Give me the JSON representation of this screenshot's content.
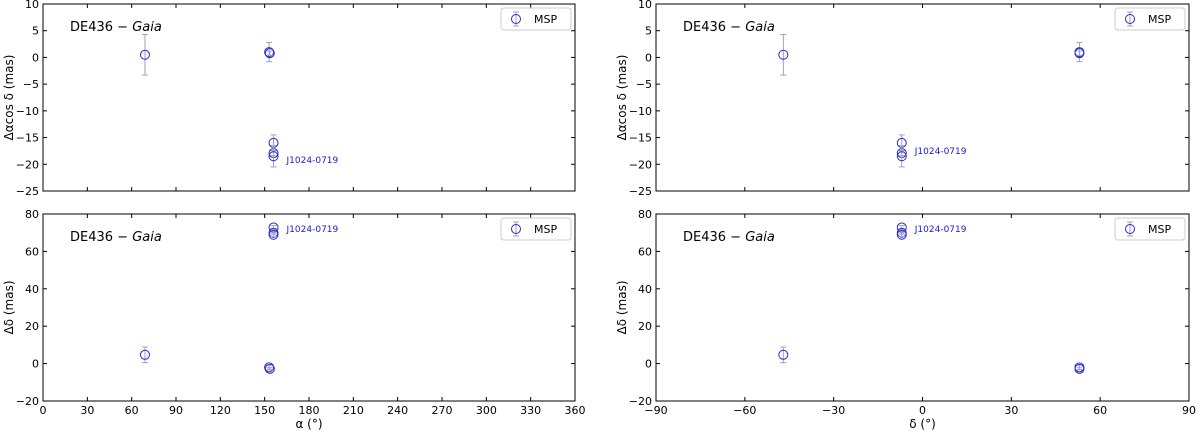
{
  "figure": {
    "panel_title_main": "DE436 − ",
    "panel_title_italic": "Gaia",
    "legend_label": "MSP",
    "marker_color": "#2a2acc",
    "errorbar_color": "#a0a0c0",
    "annotation_color": "#1a1ad0"
  },
  "chart_data": [
    {
      "type": "scatter",
      "panel": "top-left",
      "title": "DE436 − Gaia",
      "xlabel": "",
      "ylabel": "Δαcos δ (mas)",
      "xlim": [
        0,
        360
      ],
      "ylim": [
        -25,
        10
      ],
      "xticks": [
        0,
        30,
        60,
        90,
        120,
        150,
        180,
        210,
        240,
        270,
        300,
        330,
        360
      ],
      "yticks": [
        -25,
        -20,
        -15,
        -10,
        -5,
        0,
        5,
        10
      ],
      "show_xticklabels": false,
      "legend": "top-right",
      "series": [
        {
          "name": "MSP",
          "points": [
            {
              "x": 69,
              "y": 0.5,
              "err": 3.8
            },
            {
              "x": 153,
              "y": 1.0,
              "err": 1.8
            },
            {
              "x": 153.5,
              "y": 0.8,
              "err": 0.4
            },
            {
              "x": 156,
              "y": -16.0,
              "err": 1.5
            },
            {
              "x": 156,
              "y": -17.9,
              "err": 0.5
            },
            {
              "x": 156,
              "y": -18.5,
              "err": 2.0
            }
          ]
        }
      ],
      "annotations": [
        {
          "text": "J1024-0719",
          "x": 156,
          "y": -19.2
        }
      ]
    },
    {
      "type": "scatter",
      "panel": "top-right",
      "title": "DE436 − Gaia",
      "xlabel": "",
      "ylabel": "Δαcos δ (mas)",
      "xlim": [
        -90,
        90
      ],
      "ylim": [
        -25,
        10
      ],
      "xticks": [
        -90,
        -60,
        -30,
        0,
        30,
        60,
        90
      ],
      "yticks": [
        -25,
        -20,
        -15,
        -10,
        -5,
        0,
        5,
        10
      ],
      "show_xticklabels": false,
      "legend": "top-right",
      "series": [
        {
          "name": "MSP",
          "points": [
            {
              "x": -47,
              "y": 0.5,
              "err": 3.8
            },
            {
              "x": 53,
              "y": 1.0,
              "err": 1.8
            },
            {
              "x": 53,
              "y": 0.8,
              "err": 0.4
            },
            {
              "x": -7,
              "y": -16.0,
              "err": 1.5
            },
            {
              "x": -7,
              "y": -17.9,
              "err": 0.5
            },
            {
              "x": -7,
              "y": -18.5,
              "err": 2.0
            }
          ]
        }
      ],
      "annotations": [
        {
          "text": "J1024-0719",
          "x": -7,
          "y": -17.5
        }
      ]
    },
    {
      "type": "scatter",
      "panel": "bottom-left",
      "title": "DE436 − Gaia",
      "xlabel": "α (°)",
      "ylabel": "Δδ (mas)",
      "xlim": [
        0,
        360
      ],
      "ylim": [
        -20,
        80
      ],
      "xticks": [
        0,
        30,
        60,
        90,
        120,
        150,
        180,
        210,
        240,
        270,
        300,
        330,
        360
      ],
      "yticks": [
        -20,
        0,
        20,
        40,
        60,
        80
      ],
      "show_xticklabels": true,
      "legend": "top-right",
      "series": [
        {
          "name": "MSP",
          "points": [
            {
              "x": 69,
              "y": 4.7,
              "err": 4.2
            },
            {
              "x": 153,
              "y": -2.0,
              "err": 1.2
            },
            {
              "x": 153.5,
              "y": -2.8,
              "err": 0.6
            },
            {
              "x": 156,
              "y": 72.8,
              "err": 1.0
            },
            {
              "x": 156,
              "y": 70.0,
              "err": 0.8
            },
            {
              "x": 156,
              "y": 68.9,
              "err": 1.0
            }
          ]
        }
      ],
      "annotations": [
        {
          "text": "J1024-0719",
          "x": 156,
          "y": 72
        }
      ]
    },
    {
      "type": "scatter",
      "panel": "bottom-right",
      "title": "DE436 − Gaia",
      "xlabel": "δ (°)",
      "ylabel": "Δδ (mas)",
      "xlim": [
        -90,
        90
      ],
      "ylim": [
        -20,
        80
      ],
      "xticks": [
        -90,
        -60,
        -30,
        0,
        30,
        60,
        90
      ],
      "yticks": [
        -20,
        0,
        20,
        40,
        60,
        80
      ],
      "show_xticklabels": true,
      "legend": "top-right",
      "series": [
        {
          "name": "MSP",
          "points": [
            {
              "x": -47,
              "y": 4.7,
              "err": 4.2
            },
            {
              "x": 53,
              "y": -2.0,
              "err": 1.2
            },
            {
              "x": 53,
              "y": -2.8,
              "err": 0.6
            },
            {
              "x": -7,
              "y": 72.8,
              "err": 1.0
            },
            {
              "x": -7,
              "y": 70.0,
              "err": 0.8
            },
            {
              "x": -7,
              "y": 68.9,
              "err": 1.0
            }
          ]
        }
      ],
      "annotations": [
        {
          "text": "J1024-0719",
          "x": -7,
          "y": 72
        }
      ]
    }
  ]
}
